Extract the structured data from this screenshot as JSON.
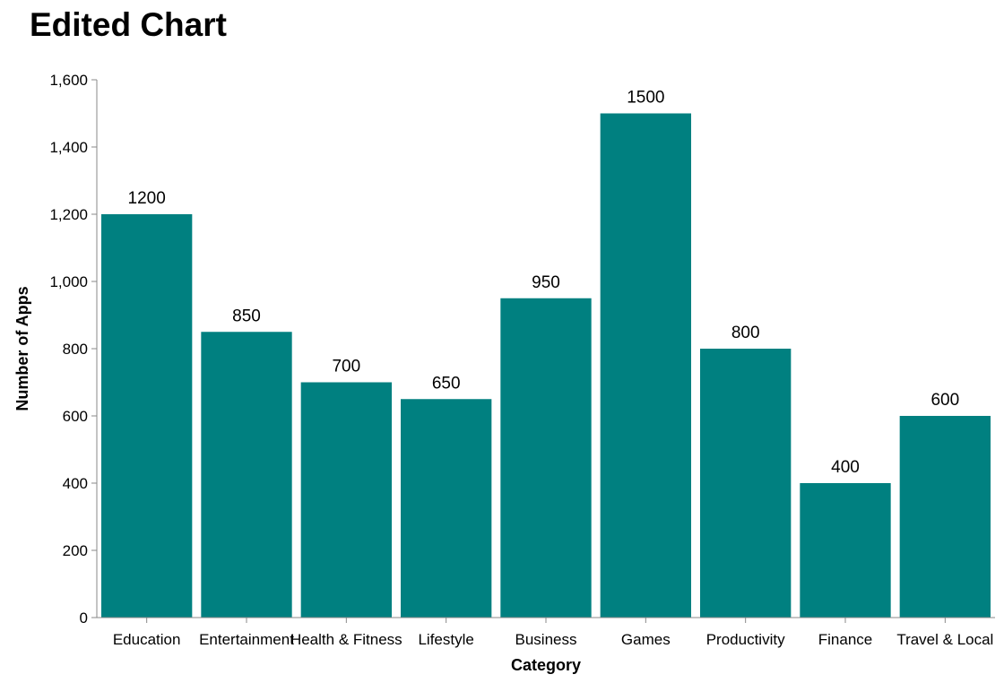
{
  "chart_data": {
    "type": "bar",
    "title": "Edited Chart",
    "xlabel": "Category",
    "ylabel": "Number of Apps",
    "categories": [
      "Education",
      "Entertainment",
      "Health & Fitness",
      "Lifestyle",
      "Business",
      "Games",
      "Productivity",
      "Finance",
      "Travel & Local"
    ],
    "values": [
      1200,
      850,
      700,
      650,
      950,
      1500,
      800,
      400,
      600
    ],
    "ylim": [
      0,
      1600
    ],
    "yticks": [
      "0",
      "200",
      "400",
      "600",
      "800",
      "1,000",
      "1,200",
      "1,400",
      "1,600"
    ],
    "bar_color": "#008080",
    "grid": false,
    "legend": "none"
  }
}
